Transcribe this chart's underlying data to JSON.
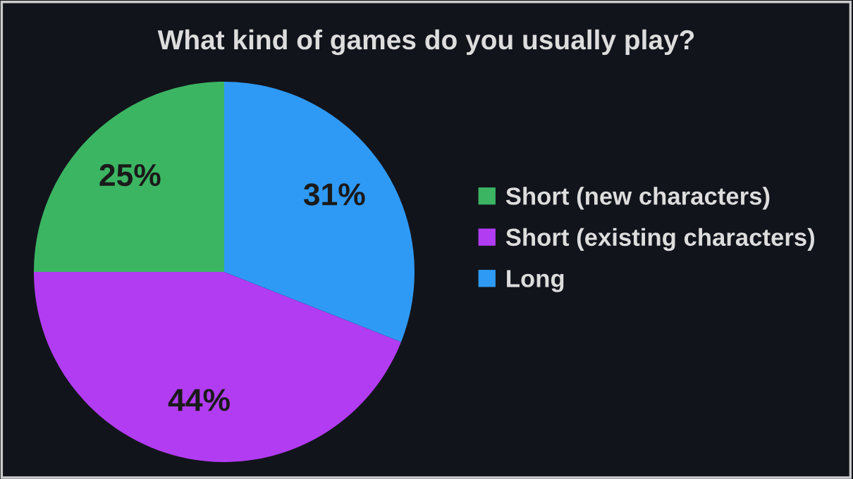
{
  "chart_data": {
    "type": "pie",
    "title": "What kind of games do you usually play?",
    "categories": [
      "Short (new characters)",
      "Short (existing characters)",
      "Long"
    ],
    "values": [
      25,
      44,
      31
    ],
    "colors": [
      "#3cb563",
      "#b23cf2",
      "#2f9af5"
    ],
    "value_labels": [
      "25%",
      "44%",
      "31%"
    ],
    "legend": "right"
  }
}
